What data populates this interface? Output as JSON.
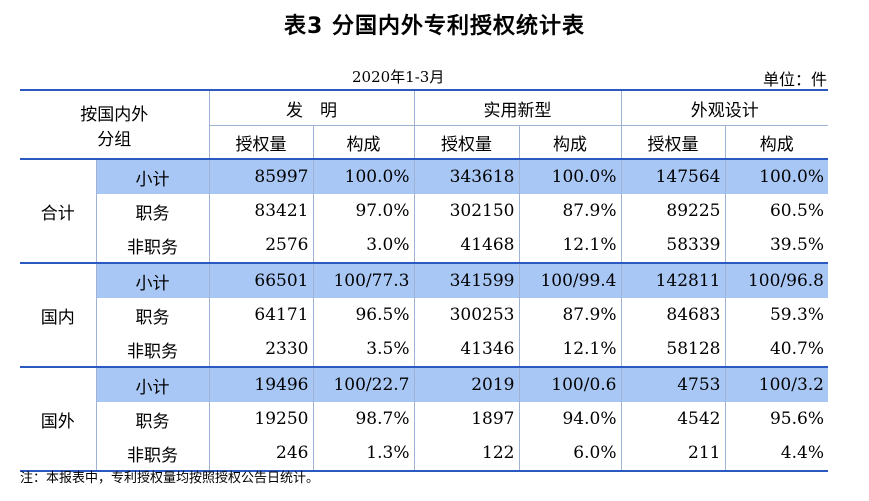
{
  "title": "表3  分国内外专利授权统计表",
  "period": "2020年1-3月",
  "unit": "单位：件",
  "header": {
    "group_label_line1": "按国内外",
    "group_label_line2": "分组",
    "categories": [
      "发　明",
      "实用新型",
      "外观设计"
    ],
    "subcols": [
      "授权量",
      "构成"
    ]
  },
  "groups": [
    {
      "name": "合计",
      "rows": [
        {
          "label": "小计",
          "values": [
            "85997",
            "100.0%",
            "343618",
            "100.0%",
            "147564",
            "100.0%"
          ]
        },
        {
          "label": "职务",
          "values": [
            "83421",
            "97.0%",
            "302150",
            "87.9%",
            "89225",
            "60.5%"
          ]
        },
        {
          "label": "非职务",
          "values": [
            "2576",
            "3.0%",
            "41468",
            "12.1%",
            "58339",
            "39.5%"
          ]
        }
      ]
    },
    {
      "name": "国内",
      "rows": [
        {
          "label": "小计",
          "values": [
            "66501",
            "100/77.3",
            "341599",
            "100/99.4",
            "142811",
            "100/96.8"
          ]
        },
        {
          "label": "职务",
          "values": [
            "64171",
            "96.5%",
            "300253",
            "87.9%",
            "84683",
            "59.3%"
          ]
        },
        {
          "label": "非职务",
          "values": [
            "2330",
            "3.5%",
            "41346",
            "12.1%",
            "58128",
            "40.7%"
          ]
        }
      ]
    },
    {
      "name": "国外",
      "rows": [
        {
          "label": "小计",
          "values": [
            "19496",
            "100/22.7",
            "2019",
            "100/0.6",
            "4753",
            "100/3.2"
          ]
        },
        {
          "label": "职务",
          "values": [
            "19250",
            "98.7%",
            "1897",
            "94.0%",
            "4542",
            "95.6%"
          ]
        },
        {
          "label": "非职务",
          "values": [
            "246",
            "1.3%",
            "122",
            "6.0%",
            "211",
            "4.4%"
          ]
        }
      ]
    }
  ],
  "note": "注：本报表中，专利授权量均按照授权公告日统计。",
  "colors": {
    "rule": "#2b59c3",
    "grid": "#9fb2d4",
    "subtotal_fill": "#a9c7f5"
  }
}
